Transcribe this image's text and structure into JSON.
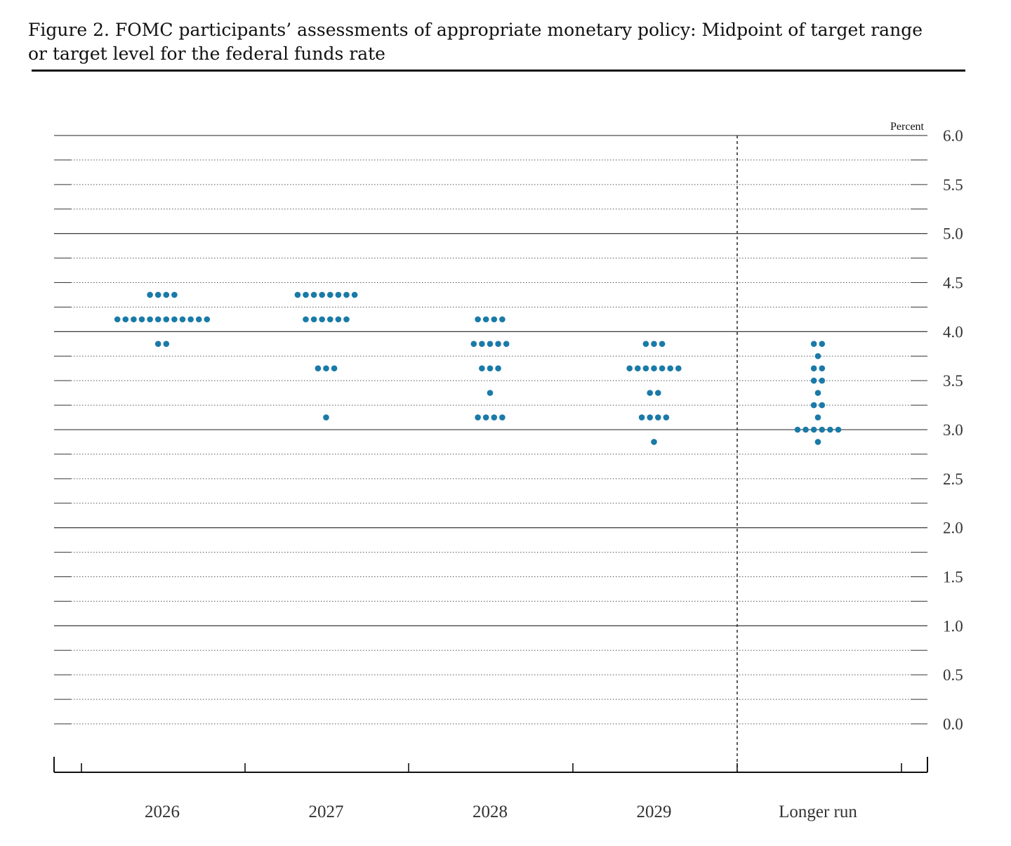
{
  "title_line1": "Figure 2. FOMC participants’ assessments of appropriate monetary policy: Midpoint of target range",
  "title_line2": "or target level for the federal funds rate",
  "colors": {
    "dot": "#1a7aa8",
    "text": "#333333",
    "rule": "#111111"
  },
  "chart_data": {
    "type": "scatter",
    "ylabel": "Percent",
    "ylim": [
      0,
      6
    ],
    "yticks": [
      "0.0",
      "0.5",
      "1.0",
      "1.5",
      "2.0",
      "2.5",
      "3.0",
      "3.5",
      "4.0",
      "4.5",
      "5.0",
      "5.5",
      "6.0"
    ],
    "categories": [
      "2026",
      "2027",
      "2028",
      "2029",
      "Longer run"
    ],
    "grid": true,
    "series": [
      {
        "category": "2026",
        "points": [
          {
            "y": 4.375,
            "count": 4
          },
          {
            "y": 4.125,
            "count": 12
          },
          {
            "y": 3.875,
            "count": 2
          }
        ]
      },
      {
        "category": "2027",
        "points": [
          {
            "y": 4.375,
            "count": 8
          },
          {
            "y": 4.125,
            "count": 6
          },
          {
            "y": 3.625,
            "count": 3
          },
          {
            "y": 3.125,
            "count": 1
          }
        ]
      },
      {
        "category": "2028",
        "points": [
          {
            "y": 4.125,
            "count": 4
          },
          {
            "y": 3.875,
            "count": 5
          },
          {
            "y": 3.625,
            "count": 3
          },
          {
            "y": 3.375,
            "count": 1
          },
          {
            "y": 3.125,
            "count": 4
          }
        ]
      },
      {
        "category": "2029",
        "points": [
          {
            "y": 3.875,
            "count": 3
          },
          {
            "y": 3.625,
            "count": 7
          },
          {
            "y": 3.375,
            "count": 2
          },
          {
            "y": 3.125,
            "count": 4
          },
          {
            "y": 2.875,
            "count": 1
          }
        ]
      },
      {
        "category": "Longer run",
        "points": [
          {
            "y": 3.875,
            "count": 2
          },
          {
            "y": 3.75,
            "count": 1
          },
          {
            "y": 3.625,
            "count": 2
          },
          {
            "y": 3.5,
            "count": 2
          },
          {
            "y": 3.375,
            "count": 1
          },
          {
            "y": 3.25,
            "count": 2
          },
          {
            "y": 3.125,
            "count": 1
          },
          {
            "y": 3.0,
            "count": 6
          },
          {
            "y": 2.875,
            "count": 1
          }
        ]
      }
    ]
  }
}
